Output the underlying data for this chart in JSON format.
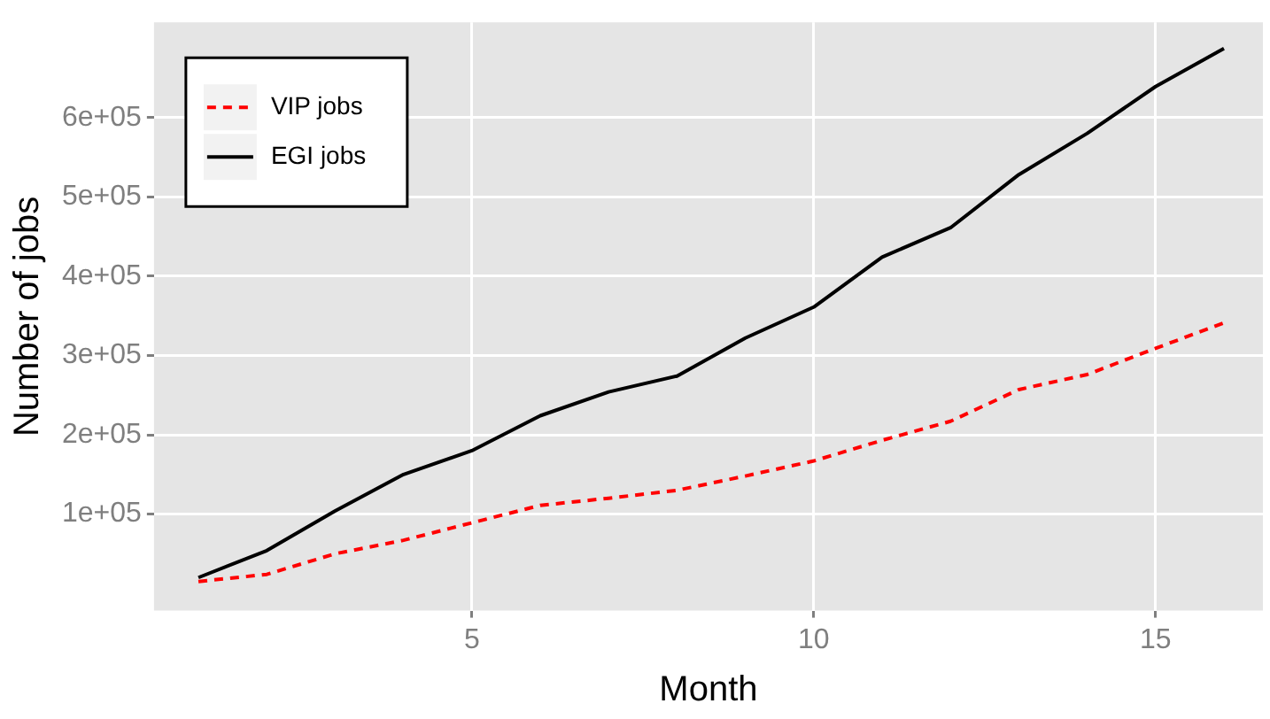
{
  "chart_data": {
    "type": "line",
    "xlabel": "Month",
    "ylabel": "Number of jobs",
    "x": [
      1,
      2,
      3,
      4,
      5,
      6,
      7,
      8,
      9,
      10,
      11,
      12,
      13,
      14,
      15,
      16
    ],
    "series": [
      {
        "name": "VIP jobs",
        "color": "#ff0000",
        "line_style": "dashed",
        "values": [
          15000,
          24000,
          50000,
          67000,
          89000,
          111000,
          120000,
          130000,
          148000,
          167000,
          193000,
          217000,
          257000,
          276000,
          309000,
          341000
        ]
      },
      {
        "name": "EGI jobs",
        "color": "#000000",
        "line_style": "solid",
        "values": [
          20000,
          54000,
          104000,
          150000,
          180000,
          224000,
          254000,
          274000,
          322000,
          361000,
          424000,
          461000,
          528000,
          580000,
          639000,
          687000
        ]
      }
    ],
    "xlim": [
      0.35,
      16.57
    ],
    "xticks": [
      5,
      10,
      15
    ],
    "ylim": [
      -21700,
      720000
    ],
    "yticks": [
      {
        "value": 100000,
        "label": "1e+05"
      },
      {
        "value": 200000,
        "label": "2e+05"
      },
      {
        "value": 300000,
        "label": "3e+05"
      },
      {
        "value": 400000,
        "label": "4e+05"
      },
      {
        "value": 500000,
        "label": "5e+05"
      },
      {
        "value": 600000,
        "label": "6e+05"
      }
    ],
    "grid": true,
    "legend": "top left",
    "marker": "none"
  }
}
